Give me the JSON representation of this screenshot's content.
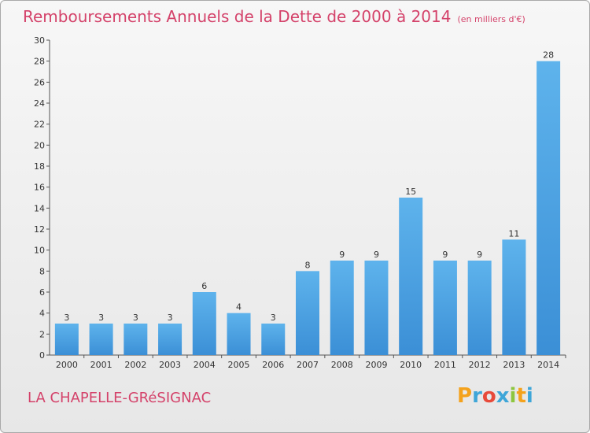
{
  "chart_data": {
    "type": "bar",
    "title": "Remboursements Annuels de la Dette de 2000 à 2014",
    "subtitle": "(en milliers d'€)",
    "categories": [
      "2000",
      "2001",
      "2002",
      "2003",
      "2004",
      "2005",
      "2006",
      "2007",
      "2008",
      "2009",
      "2010",
      "2011",
      "2012",
      "2013",
      "2014"
    ],
    "values": [
      3,
      3,
      3,
      3,
      6,
      4,
      3,
      8,
      9,
      9,
      15,
      9,
      9,
      11,
      28
    ],
    "ylim": [
      0,
      30
    ],
    "yticks": [
      0,
      2,
      4,
      6,
      8,
      10,
      12,
      14,
      16,
      18,
      20,
      22,
      24,
      26,
      28,
      30
    ],
    "xlabel": "",
    "ylabel": "",
    "bar_color": "#3b8fd6",
    "grid": false
  },
  "commune": "LA CHAPELLE-GRéSIGNAC",
  "logo": {
    "letters": [
      "P",
      "r",
      "o",
      "x",
      "i",
      "t",
      "i"
    ],
    "colors": [
      "#f4a21c",
      "#3ea6d8",
      "#e84a3a",
      "#3ea6d8",
      "#8dc63f",
      "#f4a21c",
      "#3ea6d8"
    ]
  },
  "colors": {
    "accent": "#d4426a",
    "bar": "#3b8fd6"
  }
}
